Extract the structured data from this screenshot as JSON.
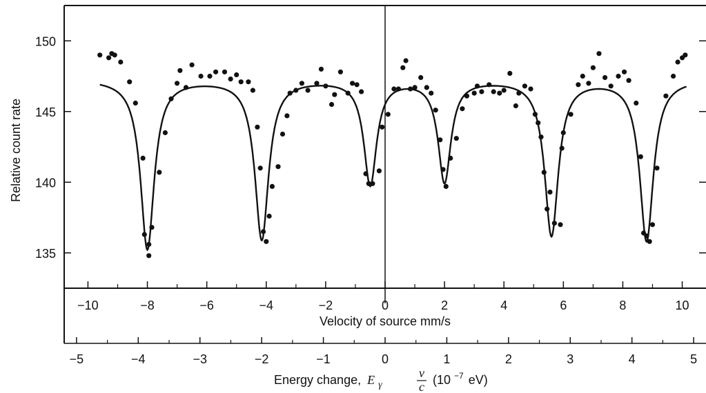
{
  "chart_data": {
    "type": "scatter",
    "title": "",
    "ylabel": "Relative count rate",
    "xlabel": "Velocity of source mm/s",
    "x2label_text": "Energy change,",
    "x2label_symbol": "E",
    "x2label_sub": "γ",
    "x2label_num": "v",
    "x2label_den": "c",
    "x2label_unit_pre": "(10",
    "x2label_unit_exp": "−7",
    "x2label_unit_post": "eV)",
    "xlim": [
      -10.8,
      10.8
    ],
    "ylim": [
      132.5,
      152.5
    ],
    "x2lim": [
      -5.2,
      5.2
    ],
    "grid": false,
    "zero_line_x": 0,
    "y_ticks": [
      135,
      140,
      145,
      150
    ],
    "y_tick_labels": [
      "135",
      "140",
      "145",
      "150"
    ],
    "x_ticks": [
      -10,
      -8,
      -6,
      -4,
      -2,
      0,
      2,
      4,
      6,
      8,
      10
    ],
    "x_tick_labels": [
      "−10",
      "−8",
      "−6",
      "−4",
      "−2",
      "0",
      "2",
      "4",
      "6",
      "8",
      "10"
    ],
    "x2_ticks": [
      -5,
      -4,
      -3,
      -2,
      -1,
      0,
      1,
      2,
      3,
      4,
      5
    ],
    "x2_tick_labels": [
      "−5",
      "−4",
      "−3",
      "−2",
      "−1",
      "0",
      "1",
      "2",
      "3",
      "4",
      "5"
    ],
    "fit": {
      "name": "fitted curve",
      "baseline": 147.3,
      "dips": [
        {
          "center": -8.0,
          "depth": 12.0,
          "width": 0.28
        },
        {
          "center": -4.15,
          "depth": 11.3,
          "width": 0.28
        },
        {
          "center": -0.5,
          "depth": 7.4,
          "width": 0.26
        },
        {
          "center": 2.0,
          "depth": 7.2,
          "width": 0.26
        },
        {
          "center": 5.6,
          "depth": 11.0,
          "width": 0.28
        },
        {
          "center": 8.8,
          "depth": 11.4,
          "width": 0.28
        }
      ]
    },
    "series": [
      {
        "name": "measured counts",
        "points": [
          [
            -9.6,
            149.0
          ],
          [
            -9.3,
            148.8
          ],
          [
            -9.2,
            149.1
          ],
          [
            -9.1,
            149.0
          ],
          [
            -8.9,
            148.5
          ],
          [
            -8.6,
            147.1
          ],
          [
            -8.4,
            145.6
          ],
          [
            -8.15,
            141.7
          ],
          [
            -8.1,
            136.3
          ],
          [
            -7.95,
            135.6
          ],
          [
            -7.95,
            134.8
          ],
          [
            -7.85,
            136.8
          ],
          [
            -7.6,
            140.7
          ],
          [
            -7.4,
            143.5
          ],
          [
            -7.2,
            145.9
          ],
          [
            -7.0,
            147.0
          ],
          [
            -6.9,
            147.9
          ],
          [
            -6.7,
            146.7
          ],
          [
            -6.5,
            148.3
          ],
          [
            -6.2,
            147.5
          ],
          [
            -5.9,
            147.5
          ],
          [
            -5.7,
            147.8
          ],
          [
            -5.4,
            147.8
          ],
          [
            -5.2,
            147.3
          ],
          [
            -5.0,
            147.6
          ],
          [
            -4.85,
            147.1
          ],
          [
            -4.6,
            147.1
          ],
          [
            -4.45,
            146.5
          ],
          [
            -4.3,
            143.9
          ],
          [
            -4.2,
            141.0
          ],
          [
            -4.1,
            136.5
          ],
          [
            -4.0,
            135.8
          ],
          [
            -3.9,
            137.6
          ],
          [
            -3.8,
            139.7
          ],
          [
            -3.6,
            141.1
          ],
          [
            -3.45,
            143.4
          ],
          [
            -3.3,
            144.7
          ],
          [
            -3.2,
            146.3
          ],
          [
            -3.0,
            146.5
          ],
          [
            -2.8,
            147.0
          ],
          [
            -2.6,
            146.5
          ],
          [
            -2.3,
            147.0
          ],
          [
            -2.15,
            148.0
          ],
          [
            -2.0,
            146.8
          ],
          [
            -1.8,
            145.5
          ],
          [
            -1.7,
            146.2
          ],
          [
            -1.5,
            147.8
          ],
          [
            -1.25,
            146.3
          ],
          [
            -1.1,
            147.0
          ],
          [
            -0.95,
            146.9
          ],
          [
            -0.8,
            146.4
          ],
          [
            -0.65,
            140.6
          ],
          [
            -0.55,
            139.9
          ],
          [
            -0.42,
            139.9
          ],
          [
            -0.2,
            140.8
          ],
          [
            -0.1,
            143.9
          ],
          [
            0.1,
            144.8
          ],
          [
            0.3,
            146.6
          ],
          [
            0.45,
            146.6
          ],
          [
            0.6,
            148.1
          ],
          [
            0.7,
            148.6
          ],
          [
            0.85,
            146.6
          ],
          [
            1.0,
            146.7
          ],
          [
            1.2,
            147.4
          ],
          [
            1.4,
            146.7
          ],
          [
            1.55,
            146.3
          ],
          [
            1.7,
            145.1
          ],
          [
            1.85,
            143.0
          ],
          [
            1.95,
            140.9
          ],
          [
            2.05,
            139.7
          ],
          [
            2.2,
            141.7
          ],
          [
            2.4,
            143.1
          ],
          [
            2.6,
            145.2
          ],
          [
            2.75,
            146.1
          ],
          [
            3.0,
            146.3
          ],
          [
            3.1,
            146.8
          ],
          [
            3.25,
            146.4
          ],
          [
            3.5,
            146.9
          ],
          [
            3.65,
            146.4
          ],
          [
            3.85,
            146.3
          ],
          [
            4.0,
            146.5
          ],
          [
            4.2,
            147.7
          ],
          [
            4.4,
            145.4
          ],
          [
            4.5,
            146.3
          ],
          [
            4.7,
            146.8
          ],
          [
            4.9,
            146.6
          ],
          [
            5.05,
            144.8
          ],
          [
            5.15,
            144.2
          ],
          [
            5.25,
            143.2
          ],
          [
            5.35,
            140.7
          ],
          [
            5.45,
            138.1
          ],
          [
            5.55,
            139.3
          ],
          [
            5.7,
            137.1
          ],
          [
            5.9,
            137.0
          ],
          [
            5.95,
            142.4
          ],
          [
            6.0,
            143.5
          ],
          [
            6.25,
            144.8
          ],
          [
            6.5,
            146.9
          ],
          [
            6.65,
            147.5
          ],
          [
            6.85,
            147.0
          ],
          [
            7.0,
            148.1
          ],
          [
            7.2,
            149.1
          ],
          [
            7.4,
            147.4
          ],
          [
            7.6,
            146.8
          ],
          [
            7.85,
            147.5
          ],
          [
            8.05,
            147.8
          ],
          [
            8.2,
            147.2
          ],
          [
            8.45,
            145.6
          ],
          [
            8.6,
            141.8
          ],
          [
            8.7,
            136.4
          ],
          [
            8.8,
            136.2
          ],
          [
            8.9,
            135.8
          ],
          [
            9.0,
            137.0
          ],
          [
            9.15,
            141.0
          ],
          [
            9.45,
            146.1
          ],
          [
            9.7,
            147.5
          ],
          [
            9.85,
            148.5
          ],
          [
            10.0,
            148.8
          ],
          [
            10.1,
            149.0
          ]
        ]
      }
    ]
  }
}
